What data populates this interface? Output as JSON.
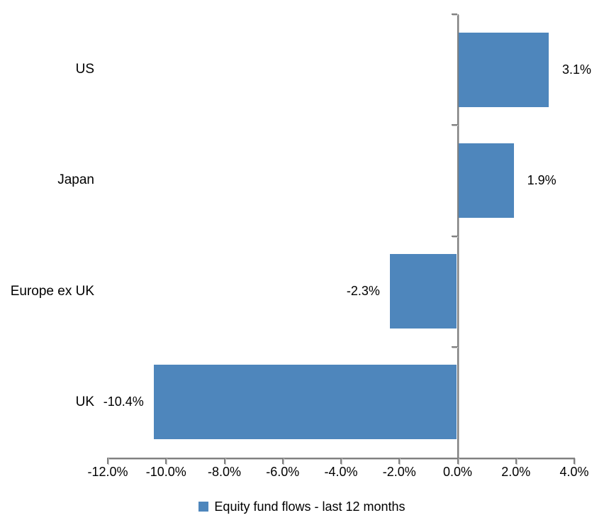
{
  "chart_data": {
    "type": "bar",
    "orientation": "horizontal",
    "title": "",
    "categories": [
      "US",
      "Japan",
      "Europe ex UK",
      "UK"
    ],
    "series": [
      {
        "name": "Equity fund flows - last 12 months",
        "values": [
          3.1,
          1.9,
          -2.3,
          -10.4
        ]
      }
    ],
    "data_labels": [
      "3.1%",
      "1.9%",
      "-2.3%",
      "-10.4%"
    ],
    "xlabel": "",
    "ylabel": "",
    "xlim": [
      -12,
      4
    ],
    "x_tick_values": [
      -12,
      -10,
      -8,
      -6,
      -4,
      -2,
      0,
      2,
      4
    ],
    "x_tick_labels": [
      "-12.0%",
      "-10.0%",
      "-8.0%",
      "-6.0%",
      "-4.0%",
      "-2.0%",
      "0.0%",
      "2.0%",
      "4.0%"
    ],
    "grid": false,
    "legend_position": "bottom",
    "legend": {
      "label": "Equity fund flows - last 12 months"
    },
    "colors": {
      "bar": "#4E86BC",
      "axis": "#808080",
      "text": "#000000"
    }
  }
}
